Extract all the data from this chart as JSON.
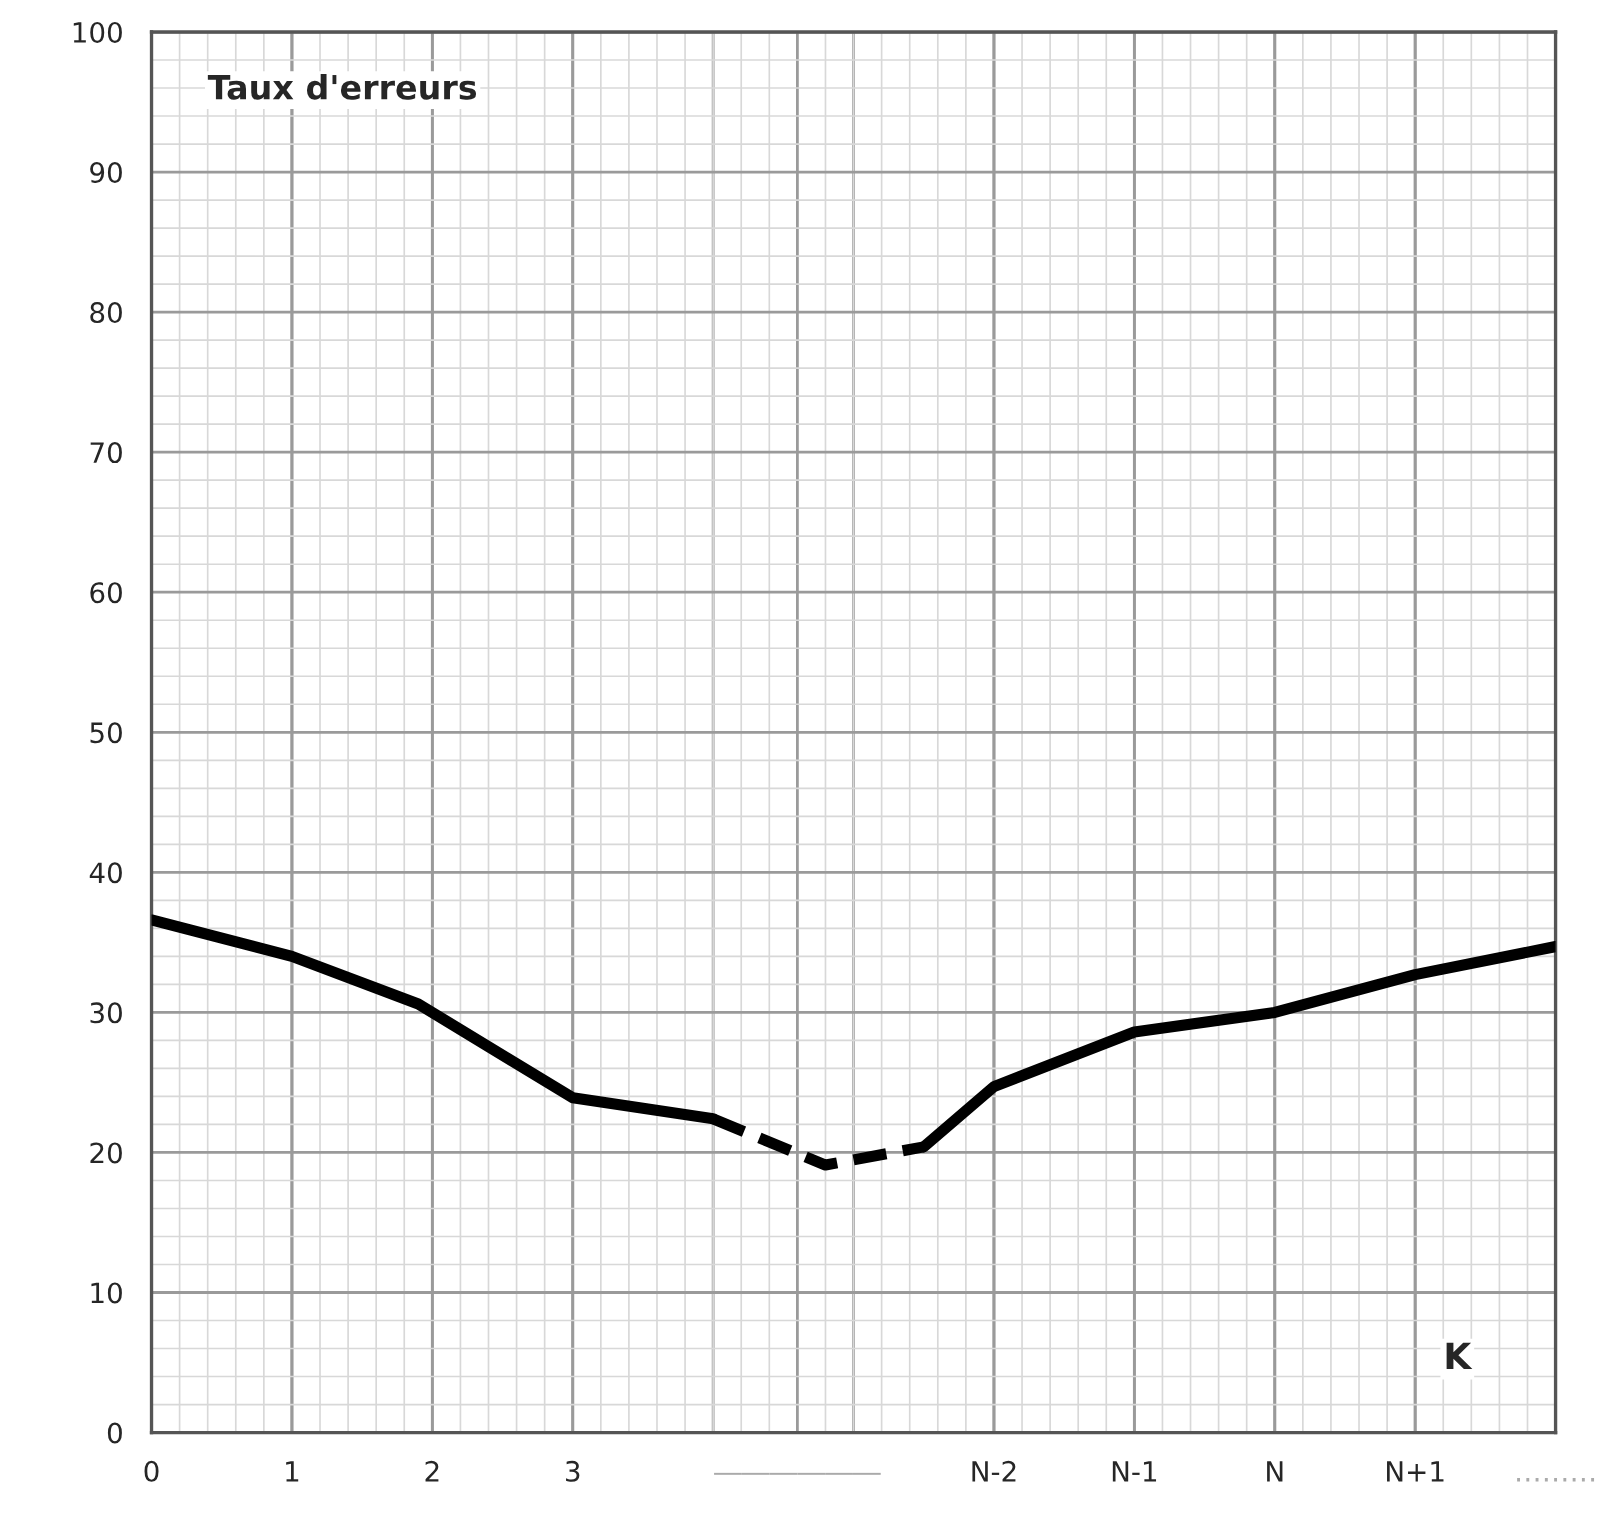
{
  "chart_data": {
    "type": "line",
    "title": "Taux d'erreurs",
    "xlabel": "K",
    "series": [
      {
        "color": "#000000",
        "line_style": "solid",
        "x": [
          0,
          1,
          1.9,
          3,
          4
        ],
        "values": [
          36.6,
          34,
          30.6,
          23.9,
          22.4
        ]
      },
      {
        "color": "#000000",
        "line_style": "dashed",
        "x": [
          4,
          4.8,
          5.5
        ],
        "values": [
          22.4,
          19.1,
          20.4
        ]
      },
      {
        "color": "#000000",
        "line_style": "solid",
        "x": [
          5.5,
          6,
          7,
          8,
          9,
          10
        ],
        "values": [
          20.4,
          24.7,
          28.6,
          30,
          32.7,
          34.7
        ]
      }
    ],
    "xlim": [
      0,
      10
    ],
    "xticks": [
      0,
      1,
      2,
      3,
      {
        "value": 4.6,
        "label": "――――――"
      },
      {
        "value": 6,
        "label": "N-2"
      },
      {
        "value": 7,
        "label": "N-1"
      },
      {
        "value": 8,
        "label": "N"
      },
      {
        "value": 9,
        "label": "N+1"
      },
      {
        "value": 10,
        "label": "………"
      }
    ],
    "ylim": [
      0,
      100
    ],
    "yticks": [
      0,
      10,
      20,
      30,
      40,
      50,
      60,
      70,
      80,
      90,
      100
    ],
    "grid": true,
    "marker": "none"
  }
}
